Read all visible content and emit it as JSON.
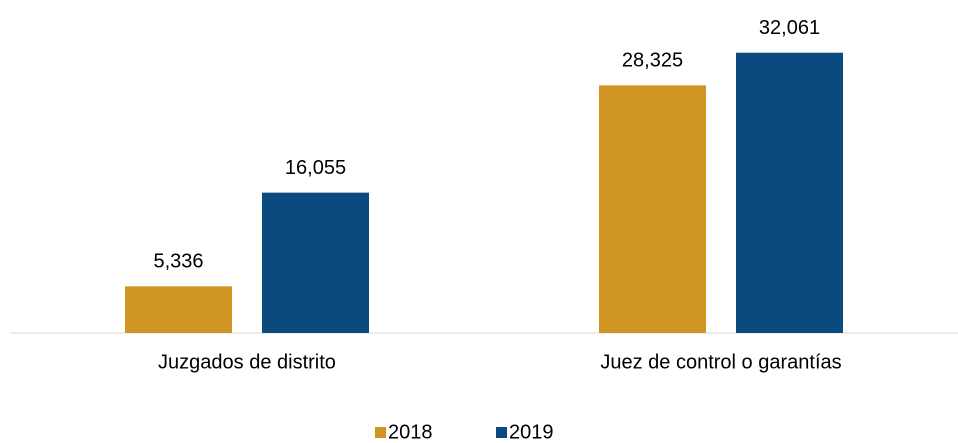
{
  "chart_data": {
    "type": "bar",
    "categories": [
      "Juzgados de distrito",
      "Juez de control o garantías"
    ],
    "series": [
      {
        "name": "2018",
        "color": "#d09423",
        "values": [
          5336,
          28325
        ],
        "value_labels": [
          "5,336",
          "28,325"
        ]
      },
      {
        "name": "2019",
        "color": "#0b4a7e",
        "values": [
          16055,
          32061
        ],
        "value_labels": [
          "16,055",
          "32,061"
        ]
      }
    ],
    "ylim": [
      0,
      35000
    ],
    "legend": "bottom"
  }
}
